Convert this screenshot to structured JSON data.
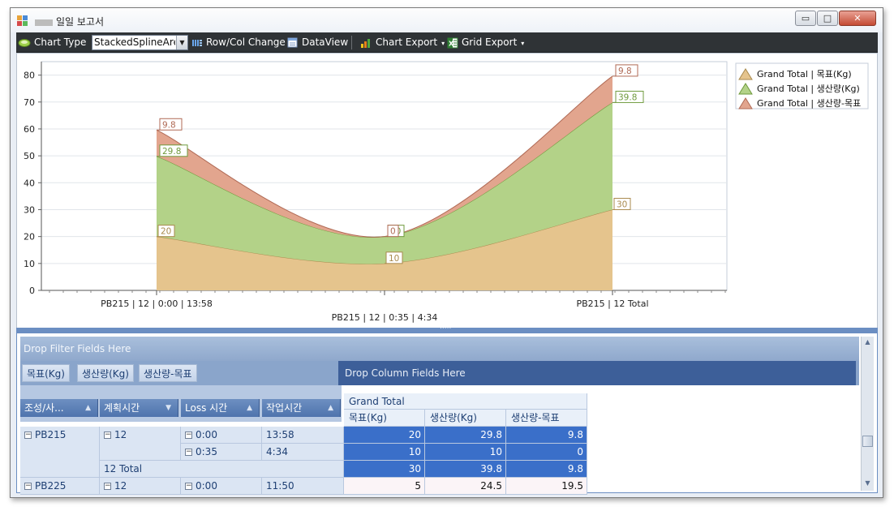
{
  "window": {
    "title": "일일 보고서",
    "controls": {
      "minimize": "▭",
      "maximize": "□",
      "close": "✕"
    }
  },
  "toolbar": {
    "chart_type_label": "Chart Type",
    "chart_type_value": "StackedSplineArea",
    "row_col_change": "Row/Col Change",
    "data_view": "DataView",
    "chart_export": "Chart Export",
    "grid_export": "Grid Export"
  },
  "chart_data": {
    "type": "area",
    "stacked": true,
    "spline": true,
    "categories": [
      "PB215 | 12 | 0:00 | 13:58",
      "PB215 | 12 | 0:35 | 4:34",
      "PB215 | 12 Total"
    ],
    "series": [
      {
        "name": "Grand Total | 목표(Kg)",
        "values": [
          20,
          10,
          30
        ],
        "labels": [
          "20",
          "10",
          "30"
        ],
        "color": "#e5c48d"
      },
      {
        "name": "Grand Total | 생산량(Kg)",
        "values": [
          29.8,
          10,
          39.8
        ],
        "labels": [
          "29.8",
          "10",
          "39.8"
        ],
        "color": "#b3d288"
      },
      {
        "name": "Grand Total | 생산량-목표",
        "values": [
          9.8,
          0,
          9.8
        ],
        "labels": [
          "9.8",
          "0",
          "9.8"
        ],
        "color": "#e2a58e"
      }
    ],
    "y_ticks": [
      "0",
      "10",
      "20",
      "30",
      "40",
      "50",
      "60",
      "70",
      "80"
    ],
    "ylim": [
      0,
      85
    ],
    "grid": true,
    "legend_position": "right"
  },
  "pivot": {
    "filter_prompt": "Drop Filter Fields Here",
    "column_prompt": "Drop Column Fields Here",
    "data_fields": [
      "목표(Kg)",
      "생산량(Kg)",
      "생산량-목표"
    ],
    "row_fields": [
      "조성/사...",
      "계획시간",
      "Loss 시간",
      "작업시간"
    ],
    "grand_total_header": "Grand Total",
    "value_headers": [
      "목표(Kg)",
      "생산량(Kg)",
      "생산량-목표"
    ],
    "rows": [
      {
        "group": "PB215",
        "plan": "12",
        "loss": "0:00",
        "work": "13:58",
        "values": [
          "20",
          "29.8",
          "9.8"
        ]
      },
      {
        "loss": "0:35",
        "work": "4:34",
        "values": [
          "10",
          "10",
          "0"
        ]
      },
      {
        "subtotal": "12 Total",
        "values": [
          "30",
          "39.8",
          "9.8"
        ]
      },
      {
        "group": "PB225",
        "plan": "12",
        "loss": "0:00",
        "work": "11:50",
        "values": [
          "5",
          "24.5",
          "19.5"
        ]
      }
    ]
  }
}
